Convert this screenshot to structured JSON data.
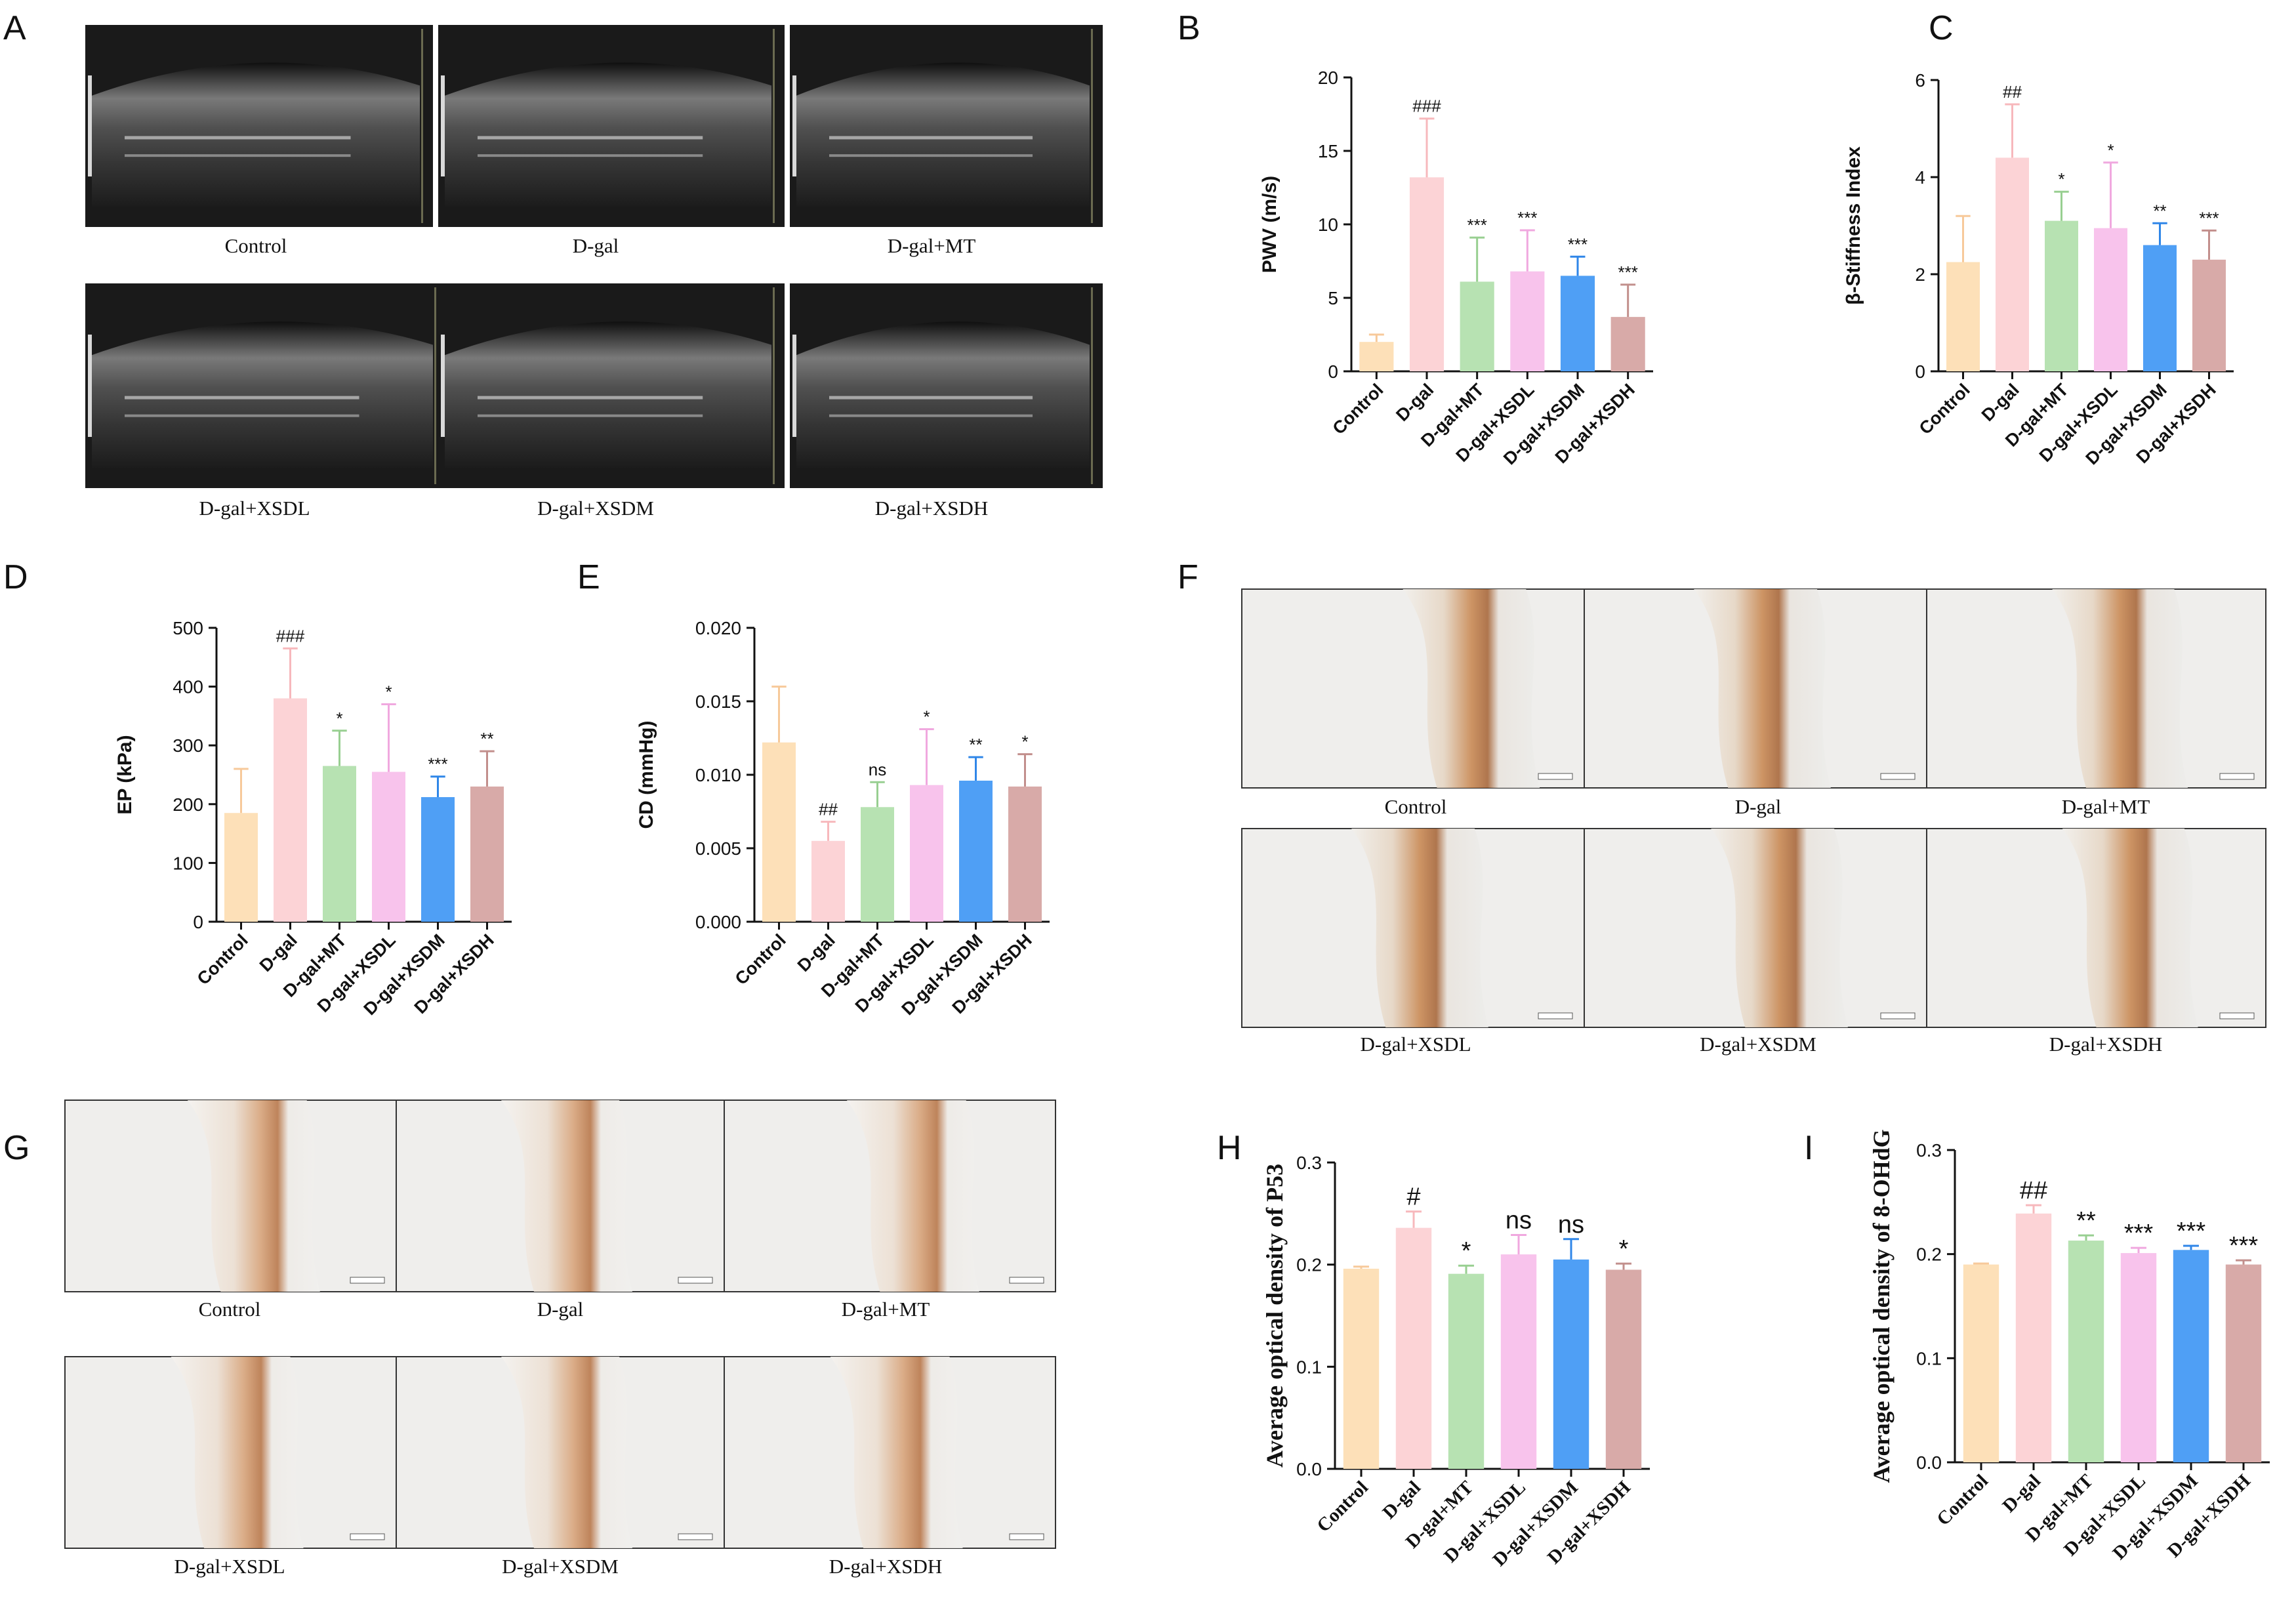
{
  "panels": {
    "A": {
      "letter": "A",
      "labels": [
        "Control",
        "D-gal",
        "D-gal+MT",
        "D-gal+XSDL",
        "D-gal+XSDM",
        "D-gal+XSDH"
      ]
    },
    "F": {
      "letter": "F",
      "labels": [
        "Control",
        "D-gal",
        "D-gal+MT",
        "D-gal+XSDL",
        "D-gal+XSDM",
        "D-gal+XSDH"
      ]
    },
    "G": {
      "letter": "G",
      "labels": [
        "Control",
        "D-gal",
        "D-gal+MT",
        "D-gal+XSDL",
        "D-gal+XSDM",
        "D-gal+XSDH"
      ]
    }
  },
  "colors": {
    "bars": [
      "#fde0b8",
      "#fcd3d6",
      "#b7e2b2",
      "#f8c3ec",
      "#4f9ff5",
      "#d8aaa8"
    ],
    "errors": [
      "#f7c99a",
      "#f7b8bc",
      "#98cf91",
      "#f0a8df",
      "#2f86e8",
      "#c28f8c"
    ],
    "ultrasound_bg": "#1a1a1a",
    "stain_bg": "#efeeec"
  },
  "chart_data": [
    {
      "letter": "B",
      "type": "bar",
      "categories": [
        "Control",
        "D-gal",
        "D-gal+MT",
        "D-gal+XSDL",
        "D-gal+XSDM",
        "D-gal+XSDH"
      ],
      "values": [
        2.0,
        13.2,
        6.1,
        6.8,
        6.5,
        3.7
      ],
      "errors": [
        0.5,
        4.0,
        3.0,
        2.8,
        1.3,
        2.2
      ],
      "significance": [
        "",
        "###",
        "***",
        "***",
        "***",
        "***"
      ],
      "ylabel": "PWV (m/s)",
      "ylim": [
        0,
        20
      ],
      "yticks": [
        0,
        5,
        10,
        15,
        20
      ]
    },
    {
      "letter": "C",
      "type": "bar",
      "categories": [
        "Control",
        "D-gal",
        "D-gal+MT",
        "D-gal+XSDL",
        "D-gal+XSDM",
        "D-gal+XSDH"
      ],
      "values": [
        2.25,
        4.4,
        3.1,
        2.95,
        2.6,
        2.3
      ],
      "errors": [
        0.95,
        1.1,
        0.6,
        1.35,
        0.45,
        0.6
      ],
      "significance": [
        "",
        "##",
        "*",
        "*",
        "**",
        "***"
      ],
      "ylabel": "β-Stiffness Index",
      "ylim": [
        0,
        6
      ],
      "yticks": [
        0,
        2,
        4,
        6
      ]
    },
    {
      "letter": "D",
      "type": "bar",
      "categories": [
        "Control",
        "D-gal",
        "D-gal+MT",
        "D-gal+XSDL",
        "D-gal+XSDM",
        "D-gal+XSDH"
      ],
      "values": [
        185,
        380,
        265,
        255,
        212,
        230
      ],
      "errors": [
        75,
        85,
        60,
        115,
        35,
        60
      ],
      "significance": [
        "",
        "###",
        "*",
        "*",
        "***",
        "**"
      ],
      "ylabel": "EP (kPa)",
      "ylim": [
        0,
        500
      ],
      "yticks": [
        0,
        100,
        200,
        300,
        400,
        500
      ]
    },
    {
      "letter": "E",
      "type": "bar",
      "categories": [
        "Control",
        "D-gal",
        "D-gal+MT",
        "D-gal+XSDL",
        "D-gal+XSDM",
        "D-gal+XSDH"
      ],
      "values": [
        0.0122,
        0.0055,
        0.0078,
        0.0093,
        0.0096,
        0.0092
      ],
      "errors": [
        0.0038,
        0.0013,
        0.0017,
        0.0038,
        0.0016,
        0.0022
      ],
      "significance": [
        "",
        "##",
        "ns",
        "*",
        "**",
        "*"
      ],
      "ylabel": "CD (mmHg)",
      "ylim": [
        0,
        0.02
      ],
      "yticks": [
        "0.000",
        "0.005",
        "0.010",
        "0.015",
        "0.020"
      ]
    },
    {
      "letter": "H",
      "type": "bar",
      "categories": [
        "Control",
        "D-gal",
        "D-gal+MT",
        "D-gal+XSDL",
        "D-gal+XSDM",
        "D-gal+XSDH"
      ],
      "values": [
        0.196,
        0.236,
        0.191,
        0.21,
        0.205,
        0.195
      ],
      "errors": [
        0.002,
        0.016,
        0.008,
        0.019,
        0.02,
        0.006
      ],
      "significance": [
        "",
        "#",
        "*",
        "ns",
        "ns",
        "*"
      ],
      "ylabel": "Average optical density of P53",
      "ylim": [
        0,
        0.3
      ],
      "yticks": [
        "0.0",
        "0.1",
        "0.2",
        "0.3"
      ]
    },
    {
      "letter": "I",
      "type": "bar",
      "categories": [
        "Control",
        "D-gal",
        "D-gal+MT",
        "D-gal+XSDL",
        "D-gal+XSDM",
        "D-gal+XSDH"
      ],
      "values": [
        0.19,
        0.239,
        0.213,
        0.201,
        0.204,
        0.19
      ],
      "errors": [
        0.001,
        0.008,
        0.005,
        0.005,
        0.004,
        0.004
      ],
      "significance": [
        "",
        "##",
        "**",
        "***",
        "***",
        "***"
      ],
      "ylabel": "Average optical density of 8-OHdG",
      "ylim": [
        0,
        0.3
      ],
      "yticks": [
        "0.0",
        "0.1",
        "0.2",
        "0.3"
      ]
    }
  ]
}
